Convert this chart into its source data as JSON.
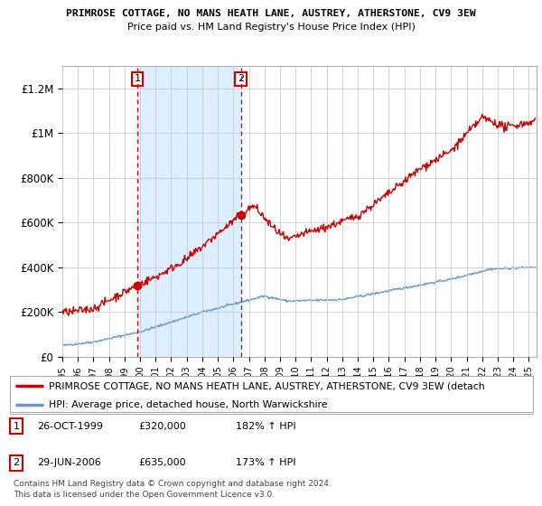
{
  "title1": "PRIMROSE COTTAGE, NO MANS HEATH LANE, AUSTREY, ATHERSTONE, CV9 3EW",
  "title2": "Price paid vs. HM Land Registry's House Price Index (HPI)",
  "xlim": [
    1995.0,
    2025.5
  ],
  "ylim": [
    0,
    1300000
  ],
  "yticks": [
    0,
    200000,
    400000,
    600000,
    800000,
    1000000,
    1200000
  ],
  "ytick_labels": [
    "£0",
    "£200K",
    "£400K",
    "£600K",
    "£800K",
    "£1M",
    "£1.2M"
  ],
  "purchase1_year": 1999.82,
  "purchase1_price": 320000,
  "purchase2_year": 2006.49,
  "purchase2_price": 635000,
  "legend_red": "PRIMROSE COTTAGE, NO MANS HEATH LANE, AUSTREY, ATHERSTONE, CV9 3EW (detach",
  "legend_blue": "HPI: Average price, detached house, North Warwickshire",
  "table_data": [
    {
      "num": "1",
      "date": "26-OCT-1999",
      "price": "£320,000",
      "hpi": "182% ↑ HPI"
    },
    {
      "num": "2",
      "date": "29-JUN-2006",
      "price": "£635,000",
      "hpi": "173% ↑ HPI"
    }
  ],
  "footnote1": "Contains HM Land Registry data © Crown copyright and database right 2024.",
  "footnote2": "This data is licensed under the Open Government Licence v3.0.",
  "red_color": "#cc0000",
  "blue_color": "#6699cc",
  "shade_color": "#ddeeff",
  "bg_color": "#ffffff",
  "grid_color": "#cccccc"
}
